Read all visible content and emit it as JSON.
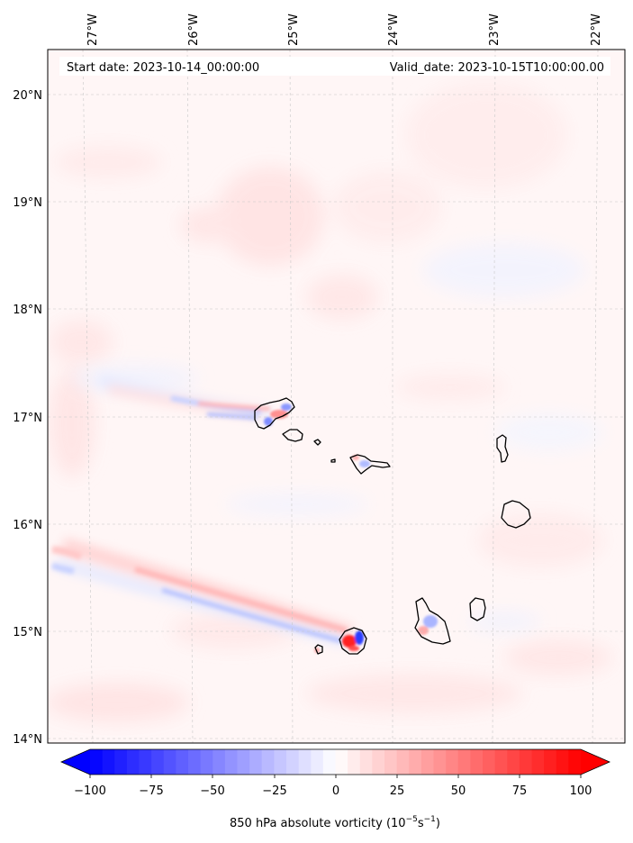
{
  "map": {
    "start_label": "Start date: 2023-10-14_00:00:00",
    "valid_label": "Valid_date: 2023-10-15T10:00:00.00",
    "lon_ticks": [
      "27°W",
      "26°W",
      "25°W",
      "24°W",
      "23°W",
      "22°W"
    ],
    "lat_ticks": [
      "20°N",
      "19°N",
      "18°N",
      "17°N",
      "16°N",
      "15°N",
      "14°N"
    ],
    "lon_values": [
      -27,
      -26,
      -25,
      -24,
      -23,
      -22
    ],
    "lat_values": [
      20,
      19,
      18,
      17,
      16,
      15,
      14
    ],
    "lon_range": [
      -27.35,
      -21.75
    ],
    "lat_range": [
      13.95,
      20.4
    ],
    "grid": "dashed",
    "colors": {
      "negative": "#0000ff",
      "positive": "#ff0000",
      "coast": "#000000",
      "grid": "#bbbbbb"
    }
  },
  "colorbar": {
    "label_prefix": "850 hPa absolute vorticity (10",
    "label_exp1": "−5",
    "label_mid": "s",
    "label_exp2": "−1",
    "label_suffix": ")",
    "ticks": [
      "−100",
      "−75",
      "−50",
      "−25",
      "0",
      "25",
      "50",
      "75",
      "100"
    ],
    "tick_values": [
      -100,
      -75,
      -50,
      -25,
      0,
      25,
      50,
      75,
      100
    ],
    "vmin": -100,
    "vmax": 100,
    "levels": 40,
    "extend": "both"
  }
}
